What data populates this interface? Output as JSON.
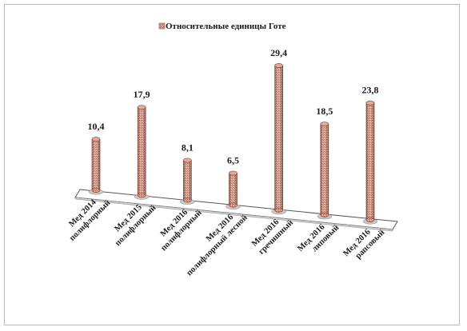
{
  "chart_data": {
    "type": "bar",
    "title": "",
    "legend": {
      "position": "top",
      "entries": [
        "Относительные единицы Готе"
      ]
    },
    "categories": [
      "Мед 2014 полифлорный",
      "Мед 2015 полифлорный",
      "Мед 2016 полифлорный",
      "Мед 2016 полифлорный лесной",
      "Мед 2016 гречишный",
      "Мед 2016 липовый",
      "Мед 2016 рапсовый"
    ],
    "category_lines": [
      [
        "Мед 2014",
        "полифлорный"
      ],
      [
        "Мед 2015",
        "полифлорный"
      ],
      [
        "Мед 2016",
        "полифлорный"
      ],
      [
        "Мед 2016",
        "полифлорный лесной"
      ],
      [
        "Мед 2016",
        "гречишный"
      ],
      [
        "Мед 2016",
        "липовый"
      ],
      [
        "Мед 2016",
        "рапсовый"
      ]
    ],
    "series": [
      {
        "name": "Относительные единицы Готе",
        "values": [
          10.4,
          17.9,
          8.1,
          6.5,
          29.4,
          18.5,
          23.8
        ]
      }
    ],
    "value_labels": [
      "10,4",
      "17,9",
      "8,1",
      "6,5",
      "29,4",
      "18,5",
      "23,8"
    ],
    "ylim": [
      0,
      29.4
    ],
    "bar_color": "#c98a76",
    "bar_edge_color": "#8a4a3a",
    "grid": false,
    "style": "3d-cylinder"
  }
}
